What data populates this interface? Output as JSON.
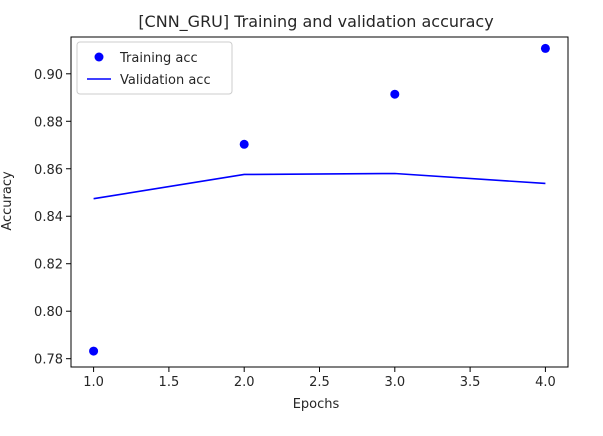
{
  "chart_data": {
    "type": "line",
    "title": "[CNN_GRU] Training and validation accuracy",
    "xlabel": "Epochs",
    "ylabel": "Accuracy",
    "xlim": [
      0.85,
      4.15
    ],
    "ylim": [
      0.7765,
      0.9155
    ],
    "xticks": [
      1.0,
      1.5,
      2.0,
      2.5,
      3.0,
      3.5,
      4.0
    ],
    "xtick_labels": [
      "1.0",
      "1.5",
      "2.0",
      "2.5",
      "3.0",
      "3.5",
      "4.0"
    ],
    "yticks": [
      0.78,
      0.8,
      0.82,
      0.84,
      0.86,
      0.88,
      0.9
    ],
    "ytick_labels": [
      "0.78",
      "0.80",
      "0.82",
      "0.84",
      "0.86",
      "0.88",
      "0.90"
    ],
    "grid": false,
    "legend_position": "top-left",
    "series": [
      {
        "name": "Training acc",
        "style": "scatter",
        "color": "#0000ff",
        "x": [
          1.0,
          2.0,
          3.0,
          4.0
        ],
        "y": [
          0.7832,
          0.8703,
          0.8914,
          0.9107
        ]
      },
      {
        "name": "Validation acc",
        "style": "line",
        "color": "#0000ff",
        "x": [
          1.0,
          2.0,
          3.0,
          4.0
        ],
        "y": [
          0.8474,
          0.8576,
          0.858,
          0.8538
        ]
      }
    ]
  }
}
